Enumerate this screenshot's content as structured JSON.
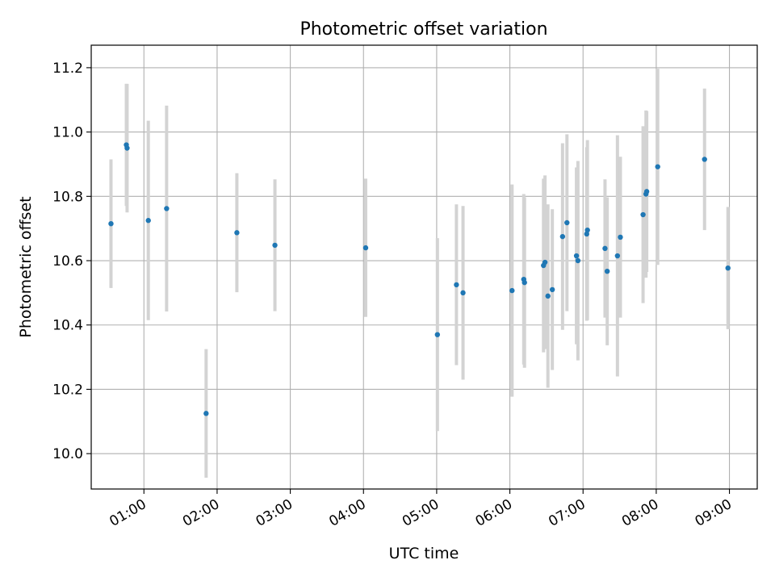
{
  "chart_data": {
    "type": "scatter",
    "title": "Photometric offset variation",
    "xlabel": "UTC time",
    "ylabel": "Photometric offset",
    "x_tick_labels": [
      "01:00",
      "02:00",
      "03:00",
      "04:00",
      "05:00",
      "06:00",
      "07:00",
      "08:00",
      "09:00"
    ],
    "x_tick_hours": [
      1,
      2,
      3,
      4,
      5,
      6,
      7,
      8,
      9
    ],
    "y_ticks": [
      10.0,
      10.2,
      10.4,
      10.6,
      10.8,
      11.0,
      11.2
    ],
    "y_tick_labels": [
      "10.0",
      "10.2",
      "10.4",
      "10.6",
      "10.8",
      "11.0",
      "11.2"
    ],
    "xlim_hours": [
      0.28,
      9.38
    ],
    "ylim": [
      9.89,
      11.27
    ],
    "grid": true,
    "marker_color": "#1f77b4",
    "errorbar_color": "#d3d3d3",
    "series": [
      {
        "points": [
          {
            "t": 0.55,
            "y": 10.715,
            "err": 0.2
          },
          {
            "t": 0.76,
            "y": 10.96,
            "err": 0.19
          },
          {
            "t": 0.77,
            "y": 10.95,
            "err": 0.2
          },
          {
            "t": 1.06,
            "y": 10.725,
            "err": 0.31
          },
          {
            "t": 1.31,
            "y": 10.762,
            "err": 0.32
          },
          {
            "t": 1.85,
            "y": 10.125,
            "err": 0.2
          },
          {
            "t": 2.27,
            "y": 10.687,
            "err": 0.185
          },
          {
            "t": 2.79,
            "y": 10.648,
            "err": 0.205
          },
          {
            "t": 4.03,
            "y": 10.64,
            "err": 0.215
          },
          {
            "t": 5.01,
            "y": 10.37,
            "err": 0.3
          },
          {
            "t": 5.27,
            "y": 10.525,
            "err": 0.25
          },
          {
            "t": 5.36,
            "y": 10.5,
            "err": 0.27
          },
          {
            "t": 6.03,
            "y": 10.507,
            "err": 0.33
          },
          {
            "t": 6.19,
            "y": 10.542,
            "err": 0.265
          },
          {
            "t": 6.2,
            "y": 10.532,
            "err": 0.265
          },
          {
            "t": 6.46,
            "y": 10.585,
            "err": 0.27
          },
          {
            "t": 6.48,
            "y": 10.595,
            "err": 0.27
          },
          {
            "t": 6.52,
            "y": 10.49,
            "err": 0.285
          },
          {
            "t": 6.58,
            "y": 10.51,
            "err": 0.25
          },
          {
            "t": 6.72,
            "y": 10.675,
            "err": 0.29
          },
          {
            "t": 6.78,
            "y": 10.718,
            "err": 0.275
          },
          {
            "t": 6.91,
            "y": 10.615,
            "err": 0.275
          },
          {
            "t": 6.93,
            "y": 10.6,
            "err": 0.31
          },
          {
            "t": 7.05,
            "y": 10.683,
            "err": 0.27
          },
          {
            "t": 7.06,
            "y": 10.695,
            "err": 0.28
          },
          {
            "t": 7.3,
            "y": 10.638,
            "err": 0.215
          },
          {
            "t": 7.33,
            "y": 10.567,
            "err": 0.23
          },
          {
            "t": 7.47,
            "y": 10.615,
            "err": 0.375
          },
          {
            "t": 7.51,
            "y": 10.673,
            "err": 0.25
          },
          {
            "t": 7.82,
            "y": 10.743,
            "err": 0.275
          },
          {
            "t": 7.86,
            "y": 10.807,
            "err": 0.26
          },
          {
            "t": 7.87,
            "y": 10.815,
            "err": 0.25
          },
          {
            "t": 8.02,
            "y": 10.892,
            "err": 0.305
          },
          {
            "t": 8.66,
            "y": 10.915,
            "err": 0.22
          },
          {
            "t": 8.98,
            "y": 10.577,
            "err": 0.19
          }
        ]
      }
    ]
  }
}
